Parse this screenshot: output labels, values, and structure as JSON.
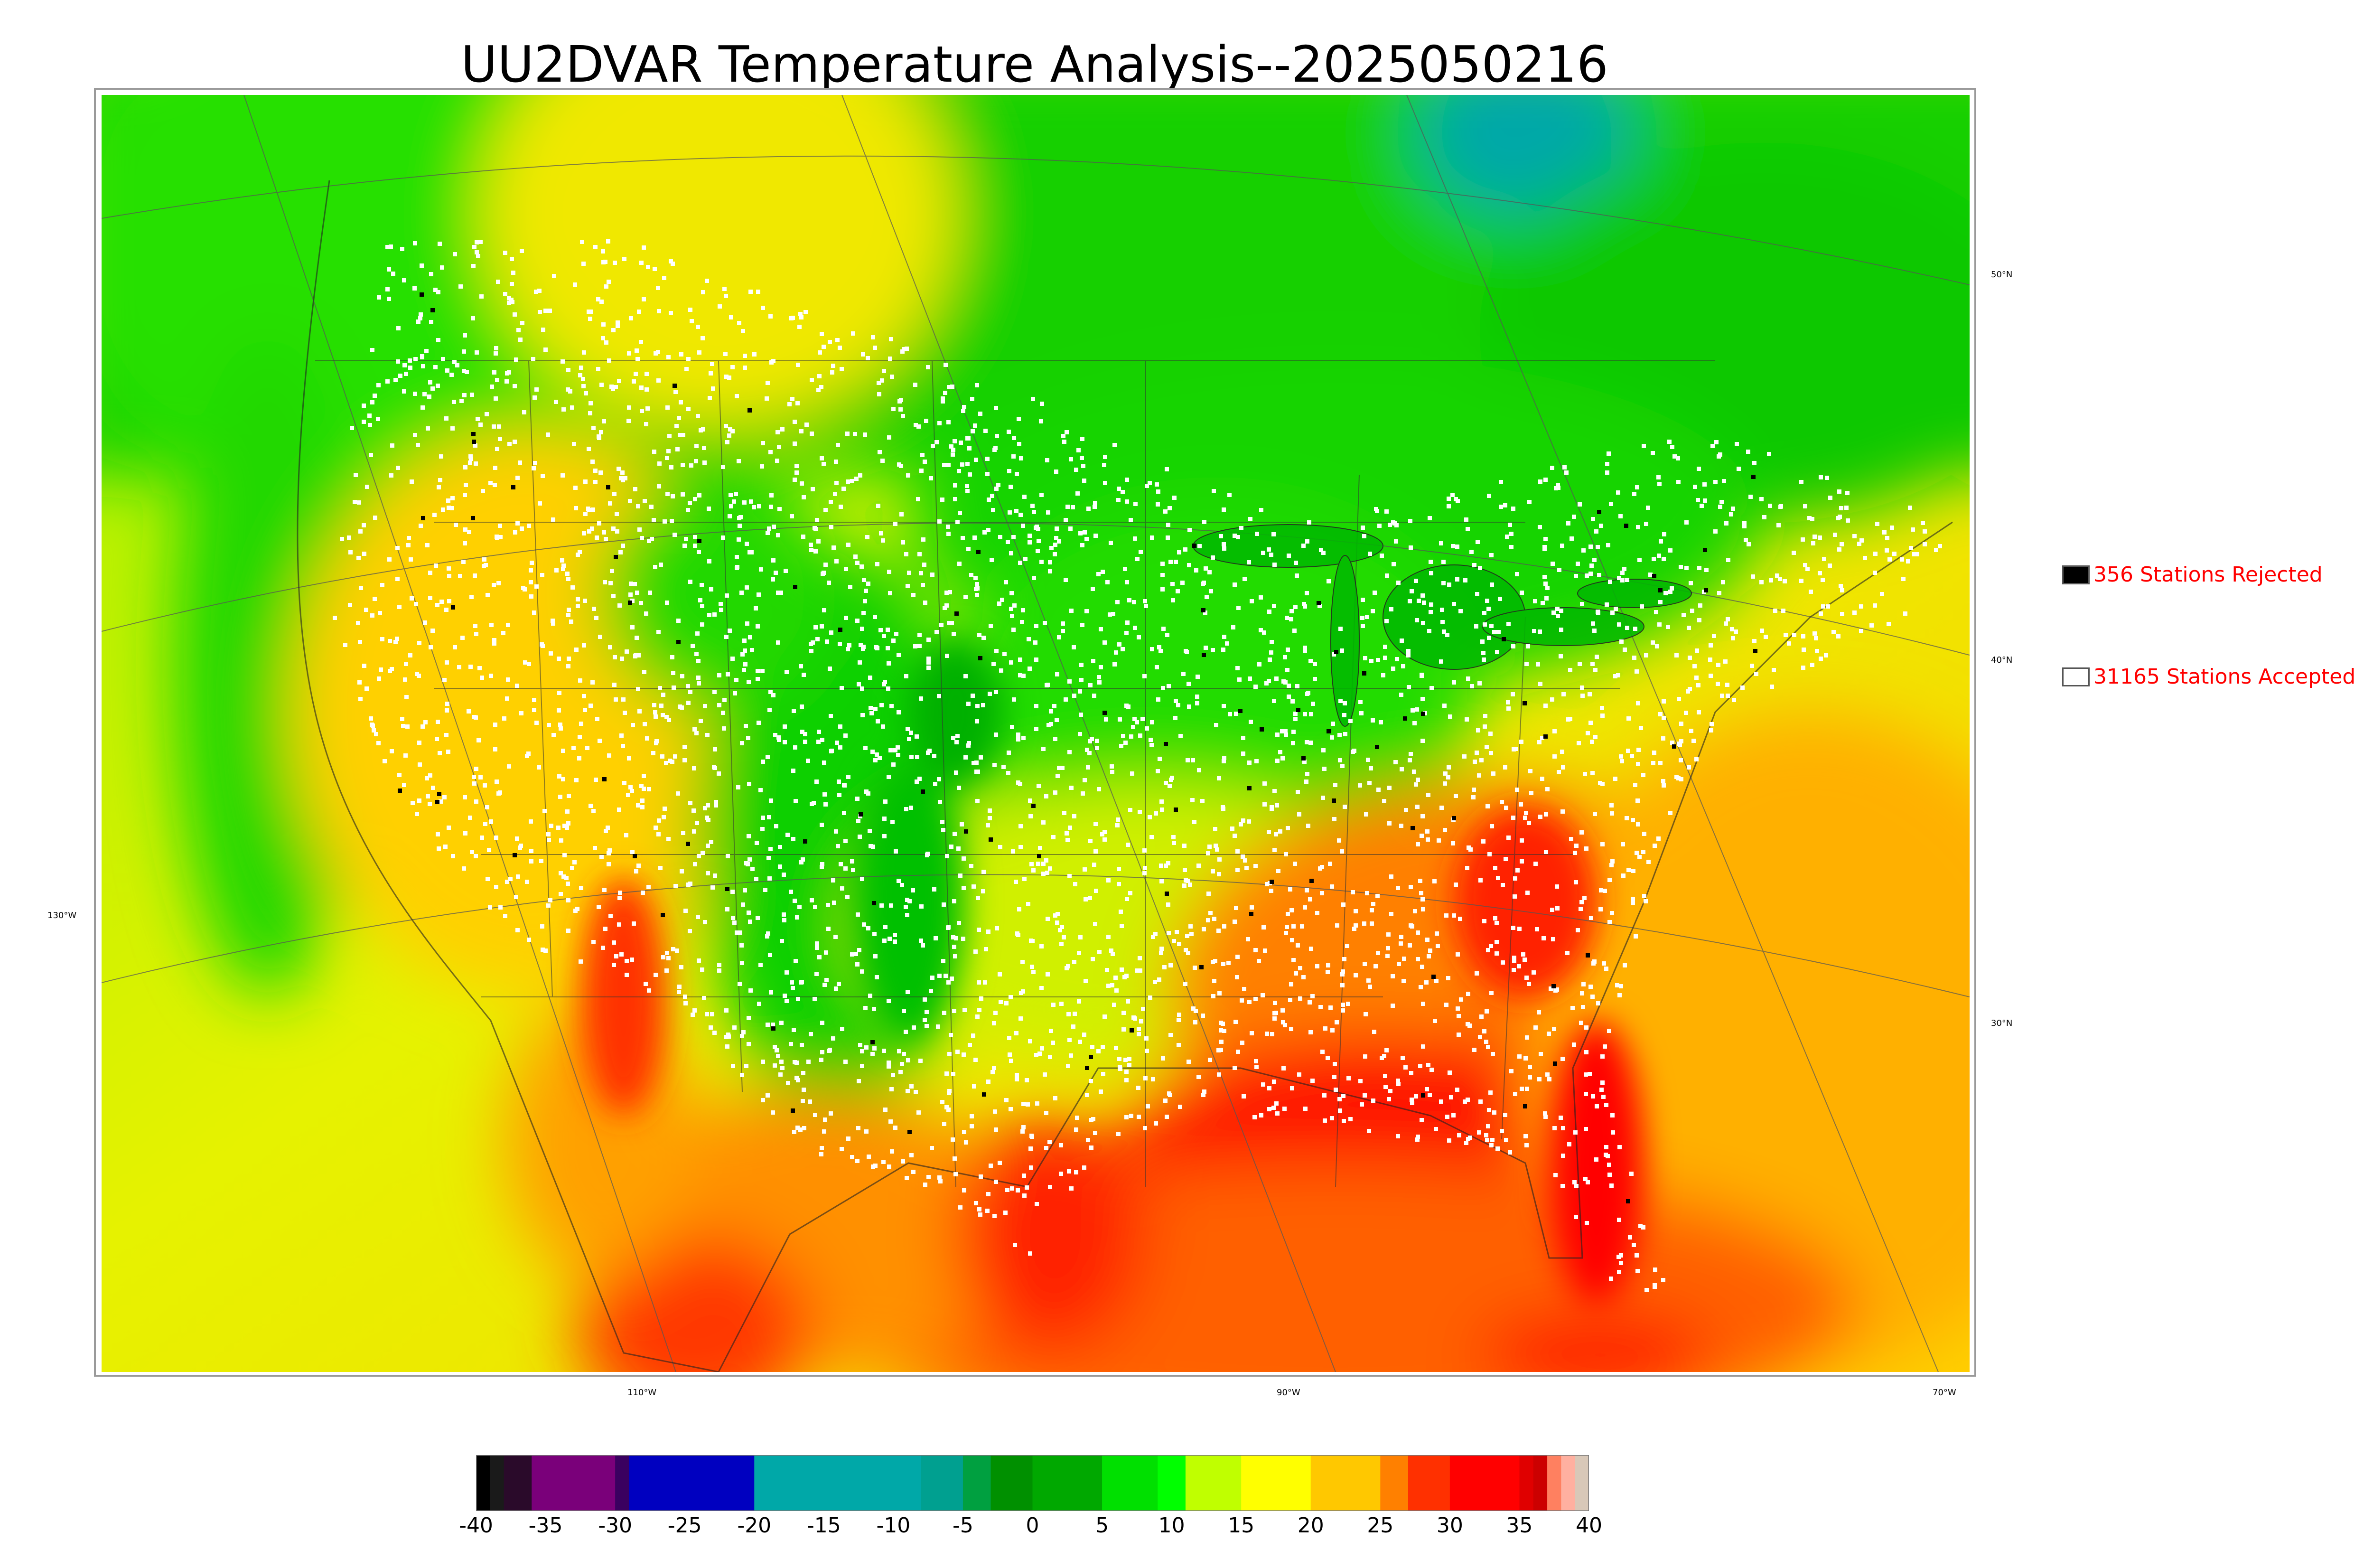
{
  "title": "UU2DVAR Temperature Analysis--2025050216",
  "legend": {
    "rejected": {
      "label": "356 Stations Rejected",
      "swatch_color": "#000000"
    },
    "accepted": {
      "label": "31165 Stations Accepted",
      "swatch_color": "#ffffff"
    }
  },
  "axes": {
    "longitude_labels": [
      "110°W",
      "90°W",
      "70°W"
    ],
    "latitude_labels": [
      "50°N",
      "40°N",
      "30°N"
    ],
    "left_label": "130°W"
  },
  "colorbar": {
    "ticks": [
      "-40",
      "-35",
      "-30",
      "-25",
      "-20",
      "-15",
      "-10",
      "-5",
      "0",
      "5",
      "10",
      "15",
      "20",
      "25",
      "30",
      "35",
      "40"
    ],
    "range": [
      -40,
      40
    ],
    "stops": [
      {
        "v": -40,
        "c": "#000000"
      },
      {
        "v": -39,
        "c": "#1a1a1a"
      },
      {
        "v": -38,
        "c": "#2a0a2a"
      },
      {
        "v": -36,
        "c": "#7a007a"
      },
      {
        "v": -31,
        "c": "#7a007a"
      },
      {
        "v": -30,
        "c": "#3a0060"
      },
      {
        "v": -29,
        "c": "#0000c0"
      },
      {
        "v": -21,
        "c": "#0000c0"
      },
      {
        "v": -20,
        "c": "#00a8a8"
      },
      {
        "v": -11,
        "c": "#00a8a8"
      },
      {
        "v": -8,
        "c": "#00a090"
      },
      {
        "v": -5,
        "c": "#00a040"
      },
      {
        "v": -3,
        "c": "#009000"
      },
      {
        "v": 0,
        "c": "#00a800"
      },
      {
        "v": 5,
        "c": "#00e000"
      },
      {
        "v": 9,
        "c": "#00ff00"
      },
      {
        "v": 11,
        "c": "#c0ff00"
      },
      {
        "v": 15,
        "c": "#ffff00"
      },
      {
        "v": 20,
        "c": "#ffc800"
      },
      {
        "v": 25,
        "c": "#ff8000"
      },
      {
        "v": 27,
        "c": "#ff3000"
      },
      {
        "v": 30,
        "c": "#ff0000"
      },
      {
        "v": 35,
        "c": "#e00000"
      },
      {
        "v": 36,
        "c": "#cc0000"
      },
      {
        "v": 37,
        "c": "#ff8060"
      },
      {
        "v": 38,
        "c": "#ffb0a0"
      },
      {
        "v": 39,
        "c": "#d8c8b8"
      },
      {
        "v": 40,
        "c": "#c8c0b0"
      }
    ]
  },
  "colors": {
    "ocean_west": "#e6f200",
    "ocean_gulf": "#ff8a00",
    "canada_green": "#00d000",
    "hot_red": "#ff0000",
    "station_accepted": "#ffffff",
    "station_rejected": "#000000"
  }
}
